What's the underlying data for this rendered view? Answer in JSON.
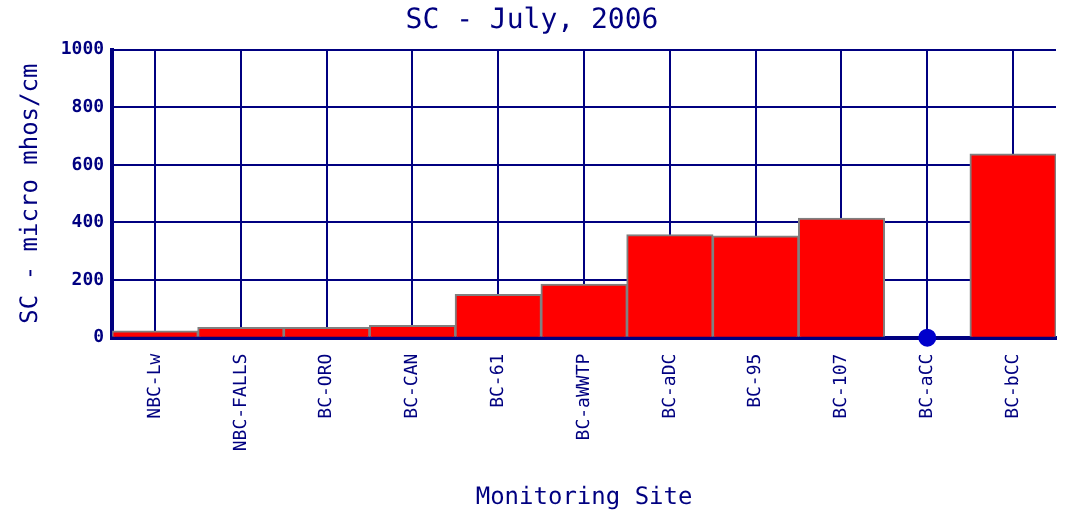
{
  "chart_data": {
    "type": "bar",
    "title": "SC - July, 2006",
    "xlabel": "Monitoring Site",
    "ylabel": "SC - micro mhos/cm",
    "categories": [
      "NBC-Lw",
      "NBC-FALLS",
      "BC-ORO",
      "BC-CAN",
      "BC-61",
      "BC-aWWTP",
      "BC-aDC",
      "BC-95",
      "BC-107",
      "BC-aCC",
      "BC-bCC"
    ],
    "series": [
      {
        "color": "#ff0000",
        "values": [
          23,
          35,
          35,
          42,
          149,
          185,
          357,
          352,
          414,
          null,
          637
        ]
      },
      {
        "type": "scatter",
        "color": "#0000cc",
        "x": [
          "BC-aCC"
        ],
        "values": [
          0
        ],
        "marker": "circle"
      }
    ],
    "ylim": [
      0,
      1000
    ],
    "yticks": [
      0,
      200,
      400,
      600,
      800,
      1000
    ],
    "grid": true,
    "legend": false
  }
}
